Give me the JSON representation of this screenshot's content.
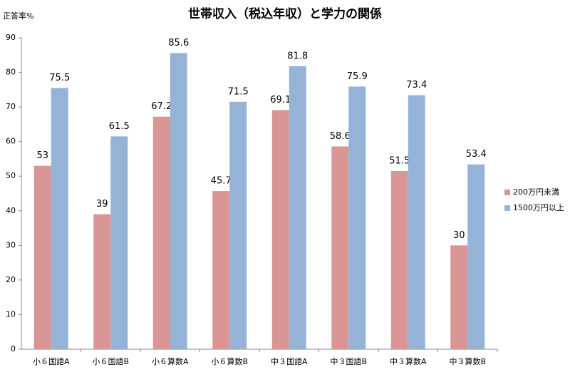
{
  "chart_data": {
    "type": "bar",
    "title": "世帯収入（税込年収）と学力の関係",
    "y_label": "正答率%",
    "categories": [
      "小６国語A",
      "小６国語B",
      "小６算数A",
      "小６算数B",
      "中３国語A",
      "中３国語B",
      "中３算数A",
      "中３算数B"
    ],
    "series": [
      {
        "name": "200万円未満",
        "color": "#d99694",
        "values": [
          53,
          39,
          67.2,
          45.7,
          69.1,
          58.6,
          51.5,
          30
        ]
      },
      {
        "name": "1500万円以上",
        "color": "#95b3d7",
        "values": [
          75.5,
          61.5,
          85.6,
          71.5,
          81.8,
          75.9,
          73.4,
          53.4
        ]
      }
    ],
    "ylim": [
      0,
      90
    ],
    "yticks": [
      0,
      10,
      20,
      30,
      40,
      50,
      60,
      70,
      80,
      90
    ],
    "grid": false,
    "legend": "right"
  }
}
